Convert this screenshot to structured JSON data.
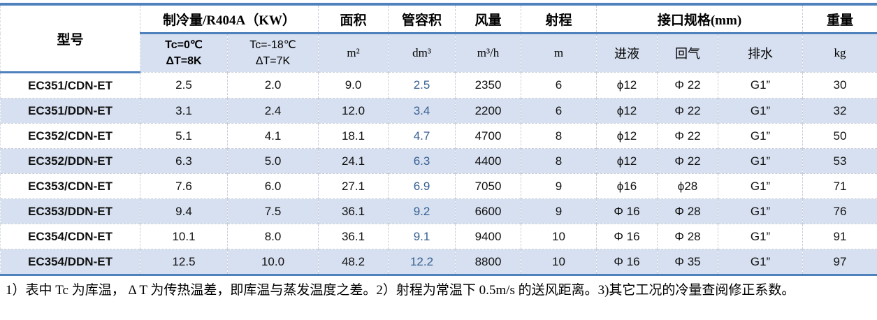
{
  "colors": {
    "accent_border": "#4f81bd",
    "row_band": "#d7e0f0",
    "tube_value_text": "#366092"
  },
  "header": {
    "model": "型号",
    "cooling_group": "制冷量/R404A（KW）",
    "cooling_sub1_line1": "Tc=0℃",
    "cooling_sub1_line2": "ΔT=8K",
    "cooling_sub2_line1": "Tc=-18℃",
    "cooling_sub2_line2": "ΔT=7K",
    "area": "面积",
    "area_unit": "m²",
    "tube_volume": "管容积",
    "tube_volume_unit": "dm³",
    "air_flow": "风量",
    "air_flow_unit": "m³/h",
    "throw": "射程",
    "throw_unit": "m",
    "connections_group": "接口规格(mm)",
    "liquid_in": "进液",
    "gas_return": "回气",
    "drain": "排水",
    "weight": "重量",
    "weight_unit": "kg"
  },
  "rows": [
    {
      "model": "EC351/CDN-ET",
      "cells": [
        "2.5",
        "2.0",
        "9.0",
        "2.5",
        "2350",
        "6",
        "ϕ12",
        "Φ 22",
        "G1”",
        "30"
      ]
    },
    {
      "model": "EC351/DDN-ET",
      "cells": [
        "3.1",
        "2.4",
        "12.0",
        "3.4",
        "2200",
        "6",
        "ϕ12",
        "Φ 22",
        "G1”",
        "32"
      ]
    },
    {
      "model": "EC352/CDN-ET",
      "cells": [
        "5.1",
        "4.1",
        "18.1",
        "4.7",
        "4700",
        "8",
        "ϕ12",
        "Φ 22",
        "G1”",
        "50"
      ]
    },
    {
      "model": "EC352/DDN-ET",
      "cells": [
        "6.3",
        "5.0",
        "24.1",
        "6.3",
        "4400",
        "8",
        "ϕ12",
        "Φ 22",
        "G1”",
        "53"
      ]
    },
    {
      "model": "EC353/CDN-ET",
      "cells": [
        "7.6",
        "6.0",
        "27.1",
        "6.9",
        "7050",
        "9",
        "ϕ16",
        "ϕ28",
        "G1”",
        "71"
      ]
    },
    {
      "model": "EC353/DDN-ET",
      "cells": [
        "9.4",
        "7.5",
        "36.1",
        "9.2",
        "6600",
        "9",
        "Φ 16",
        "Φ 28",
        "G1”",
        "76"
      ]
    },
    {
      "model": "EC354/CDN-ET",
      "cells": [
        "10.1",
        "8.0",
        "36.1",
        "9.1",
        "9400",
        "10",
        "Φ 16",
        "Φ 28",
        "G1”",
        "91"
      ]
    },
    {
      "model": "EC354/DDN-ET",
      "cells": [
        "12.5",
        "10.0",
        "48.2",
        "12.2",
        "8800",
        "10",
        "Φ 16",
        "Φ 35",
        "G1”",
        "97"
      ]
    }
  ],
  "notes": "1）表中 Tc 为库温， Δ T 为传热温差，即库温与蒸发温度之差。2）射程为常温下 0.5m/s 的送风距离。3)其它工况的冷量查阅修正系数。"
}
